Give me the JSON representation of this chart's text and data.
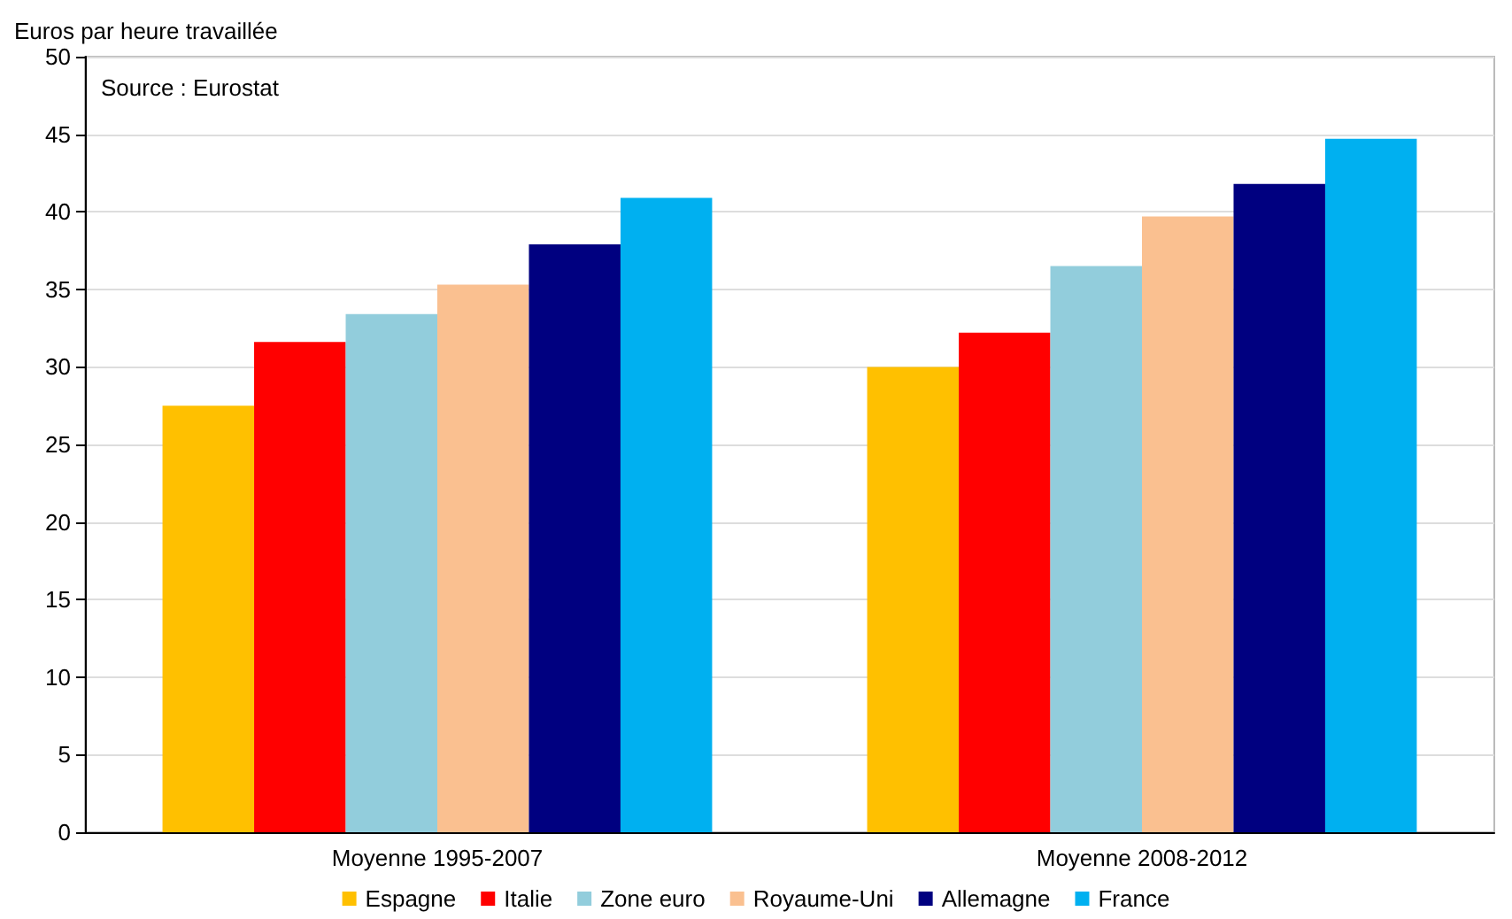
{
  "chart_data": {
    "type": "bar",
    "ylabel": "Euros par heure travaillée",
    "annotations": [
      "Source : Eurostat"
    ],
    "categories": [
      "Moyenne 1995-2007",
      "Moyenne 2008-2012"
    ],
    "series": [
      {
        "name": "Espagne",
        "color": "#ffc000",
        "values": [
          27.5,
          30.0
        ]
      },
      {
        "name": "Italie",
        "color": "#ff0000",
        "values": [
          31.6,
          32.2
        ]
      },
      {
        "name": "Zone euro",
        "color": "#92cddc",
        "values": [
          33.4,
          36.5
        ]
      },
      {
        "name": "Royaume-Uni",
        "color": "#fac090",
        "values": [
          35.3,
          39.7
        ]
      },
      {
        "name": "Allemagne",
        "color": "#000080",
        "values": [
          37.9,
          41.8
        ]
      },
      {
        "name": "France",
        "color": "#00b0f0",
        "values": [
          40.9,
          44.7
        ]
      }
    ],
    "ylim": [
      0,
      50
    ],
    "yticks": [
      0,
      5,
      10,
      15,
      20,
      25,
      30,
      35,
      40,
      45,
      50
    ],
    "grid": "y",
    "legend": "bottom"
  }
}
